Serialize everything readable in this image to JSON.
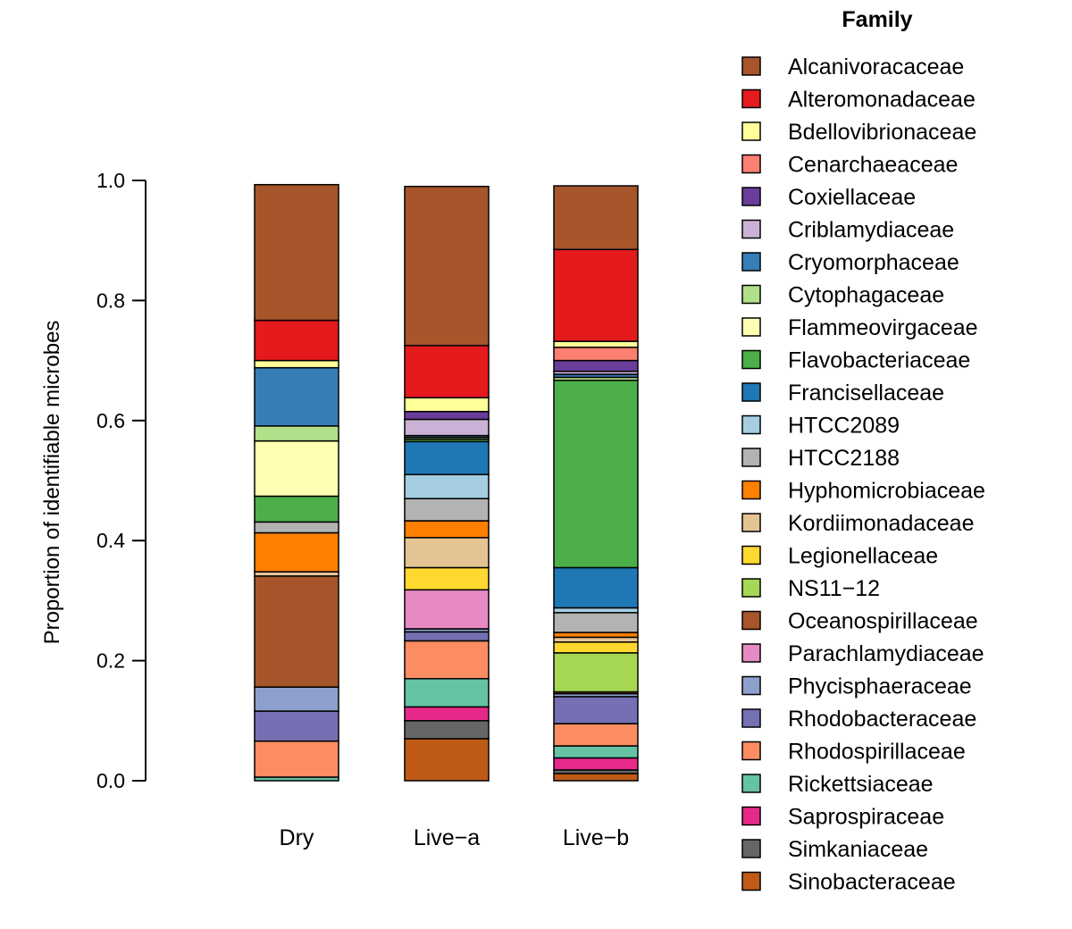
{
  "chart_data": {
    "type": "bar",
    "stacked": true,
    "ylabel": "Proportion of identifiable microbes",
    "xlabel": "",
    "ylim": [
      0,
      1
    ],
    "yticks": [
      0.0,
      0.2,
      0.4,
      0.6,
      0.8,
      1.0
    ],
    "ytick_labels": [
      "0.0",
      "0.2",
      "0.4",
      "0.6",
      "0.8",
      "1.0"
    ],
    "categories": [
      "Dry",
      "Live−a",
      "Live−b"
    ],
    "legend_title": "Family",
    "legend_position": "right",
    "series": [
      {
        "name": "Sinobacteraceae",
        "color": "#BF5B17",
        "values": [
          0.0,
          0.07,
          0.012
        ]
      },
      {
        "name": "Simkaniaceae",
        "color": "#666666",
        "values": [
          0.0,
          0.03,
          0.006
        ]
      },
      {
        "name": "Saprospiraceae",
        "color": "#E7298A",
        "values": [
          0.0,
          0.023,
          0.02
        ]
      },
      {
        "name": "Rickettsiaceae",
        "color": "#66C2A5",
        "values": [
          0.006,
          0.047,
          0.02
        ]
      },
      {
        "name": "Rhodospirillaceae",
        "color": "#FC8D62",
        "values": [
          0.06,
          0.063,
          0.037
        ]
      },
      {
        "name": "Rhodobacteraceae",
        "color": "#7570B3",
        "values": [
          0.05,
          0.015,
          0.045
        ]
      },
      {
        "name": "Phycisphaeraceae",
        "color": "#8DA0CB",
        "values": [
          0.04,
          0.005,
          0.005
        ]
      },
      {
        "name": "Parachlamydiaceae",
        "color": "#E78AC3",
        "values": [
          0.0,
          0.065,
          0.0
        ]
      },
      {
        "name": "Oceanospirillaceae",
        "color": "#A6562A",
        "values": [
          0.185,
          0.0,
          0.003
        ]
      },
      {
        "name": "NS11−12",
        "color": "#A6D854",
        "values": [
          0.0,
          0.0,
          0.065
        ]
      },
      {
        "name": "Legionellaceae",
        "color": "#FFD92F",
        "values": [
          0.0,
          0.037,
          0.018
        ]
      },
      {
        "name": "Kordiimonadaceae",
        "color": "#E5C494",
        "values": [
          0.007,
          0.05,
          0.008
        ]
      },
      {
        "name": "Hyphomicrobiaceae",
        "color": "#FF7F00",
        "values": [
          0.065,
          0.028,
          0.008
        ]
      },
      {
        "name": "HTCC2188",
        "color": "#B3B3B3",
        "values": [
          0.018,
          0.037,
          0.033
        ]
      },
      {
        "name": "HTCC2089",
        "color": "#A6CEE3",
        "values": [
          0.0,
          0.04,
          0.008
        ]
      },
      {
        "name": "Francisellaceae",
        "color": "#1F78B4",
        "values": [
          0.0,
          0.055,
          0.067
        ]
      },
      {
        "name": "Flavobacteriaceae",
        "color": "#4DAF4A",
        "values": [
          0.043,
          0.004,
          0.312
        ]
      },
      {
        "name": "Flammeovirgaceae",
        "color": "#FFFFB3",
        "values": [
          0.092,
          0.0,
          0.0
        ]
      },
      {
        "name": "Cytophagaceae",
        "color": "#B2DF8A",
        "values": [
          0.025,
          0.003,
          0.005
        ]
      },
      {
        "name": "Cryomorphaceae",
        "color": "#377EB8",
        "values": [
          0.097,
          0.003,
          0.005
        ]
      },
      {
        "name": "Criblamydiaceae",
        "color": "#CAB2D6",
        "values": [
          0.0,
          0.027,
          0.005
        ]
      },
      {
        "name": "Coxiellaceae",
        "color": "#6A3D9A",
        "values": [
          0.0,
          0.013,
          0.018
        ]
      },
      {
        "name": "Cenarchaeaceae",
        "color": "#FB8072",
        "values": [
          0.0,
          0.0,
          0.022
        ]
      },
      {
        "name": "Bdellovibrionaceae",
        "color": "#FFFF99",
        "values": [
          0.012,
          0.023,
          0.01
        ]
      },
      {
        "name": "Alteromonadaceae",
        "color": "#E41A1C",
        "values": [
          0.067,
          0.087,
          0.153
        ]
      },
      {
        "name": "Alcanivoracaceae",
        "color": "#A6562A",
        "values": [
          0.226,
          0.265,
          0.106
        ]
      }
    ]
  }
}
